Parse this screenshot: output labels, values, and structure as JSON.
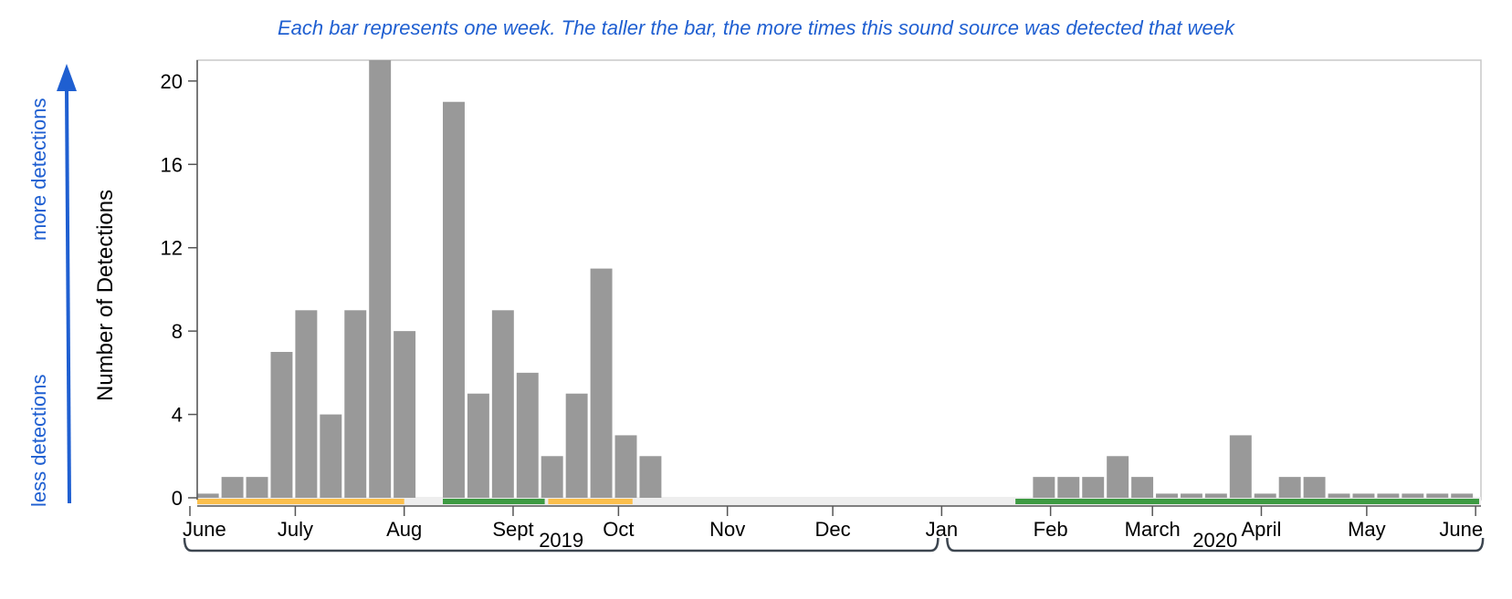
{
  "caption": "Each bar represents one week. The taller the bar, the more times this sound source was detected that week",
  "side_labels": {
    "more": "more detections",
    "less": "less detections"
  },
  "colors": {
    "bar": "#999999",
    "accent": "#1f5fd1",
    "orange": "#fbbf4d",
    "green": "#3d9a42",
    "axis": "#555555",
    "frame": "#c8c8c8",
    "track": "#eeeeee"
  },
  "chart_data": {
    "type": "bar",
    "title": "",
    "xlabel": "",
    "ylabel": "Number of Detections",
    "ylim": [
      0,
      21
    ],
    "yticks": [
      0,
      4,
      8,
      12,
      16,
      20
    ],
    "x_range": [
      "2019-06-01",
      "2020-06-02"
    ],
    "grid": false,
    "legend": "none",
    "weeks": [
      "2019-06-03",
      "2019-06-10",
      "2019-06-17",
      "2019-06-24",
      "2019-07-01",
      "2019-07-08",
      "2019-07-15",
      "2019-07-22",
      "2019-07-29",
      "2019-08-05",
      "2019-08-12",
      "2019-08-19",
      "2019-08-26",
      "2019-09-02",
      "2019-09-09",
      "2019-09-16",
      "2019-09-23",
      "2019-09-30",
      "2019-10-07",
      "2020-01-27",
      "2020-02-03",
      "2020-02-10",
      "2020-02-17",
      "2020-02-24",
      "2020-03-02",
      "2020-03-09",
      "2020-03-16",
      "2020-03-23",
      "2020-03-30",
      "2020-04-06",
      "2020-04-13",
      "2020-04-20",
      "2020-04-27",
      "2020-05-04",
      "2020-05-11",
      "2020-05-18",
      "2020-05-25"
    ],
    "values": [
      0.2,
      1,
      1,
      7,
      9,
      4,
      9,
      21,
      8,
      0,
      19,
      5,
      9,
      6,
      2,
      5,
      11,
      3,
      2,
      1,
      1,
      1,
      2,
      1,
      0.2,
      0.2,
      0.2,
      3,
      0.2,
      1,
      1,
      0.2,
      0.2,
      0.2,
      0.2,
      0.2,
      0.2
    ],
    "month_ticks": [
      {
        "label": "June",
        "date": "2019-06-01"
      },
      {
        "label": "July",
        "date": "2019-07-01"
      },
      {
        "label": "Aug",
        "date": "2019-08-01"
      },
      {
        "label": "Sept",
        "date": "2019-09-01"
      },
      {
        "label": "Oct",
        "date": "2019-10-01"
      },
      {
        "label": "Nov",
        "date": "2019-11-01"
      },
      {
        "label": "Dec",
        "date": "2019-12-01"
      },
      {
        "label": "Jan",
        "date": "2020-01-01"
      },
      {
        "label": "Feb",
        "date": "2020-02-01"
      },
      {
        "label": "March",
        "date": "2020-03-01"
      },
      {
        "label": "April",
        "date": "2020-04-01"
      },
      {
        "label": "May",
        "date": "2020-05-01"
      },
      {
        "label": "June",
        "date": "2020-06-01"
      }
    ],
    "years": [
      {
        "label": "2019",
        "start": "2019-06-01",
        "end": "2020-01-01"
      },
      {
        "label": "2020",
        "start": "2020-01-01",
        "end": "2020-06-01"
      }
    ],
    "period_bars": [
      {
        "color": "orange",
        "start": "2019-06-01",
        "end": "2019-08-01"
      },
      {
        "color": "green",
        "start": "2019-08-12",
        "end": "2019-09-10"
      },
      {
        "color": "orange",
        "start": "2019-09-11",
        "end": "2019-10-05"
      },
      {
        "color": "green",
        "start": "2020-01-22",
        "end": "2020-06-02"
      }
    ]
  }
}
